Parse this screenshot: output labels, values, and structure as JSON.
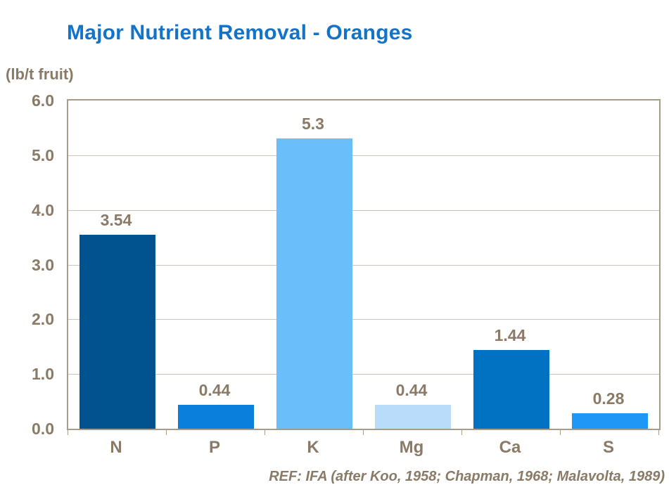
{
  "title": {
    "text": "Major Nutrient Removal - Oranges",
    "color": "#1273C8"
  },
  "unit_label": "(lb/t fruit)",
  "footer": {
    "ref_text": "REF: IFA (after Koo, 1958; Chapman, 1968; Malavolta, 1989)"
  },
  "style_colors": {
    "label_text": "#8A7A66",
    "axis_border": "#A79B89",
    "gridline": "#CCC2B2",
    "background": "#FFFFFF"
  },
  "chart_data": {
    "type": "bar",
    "title": "Major Nutrient Removal - Oranges",
    "categories": [
      "N",
      "P",
      "K",
      "Mg",
      "Ca",
      "S"
    ],
    "values": [
      3.54,
      0.44,
      5.3,
      0.44,
      1.44,
      0.28
    ],
    "value_labels": [
      "3.54",
      "0.44",
      "5.3",
      "0.44",
      "1.44",
      "0.28"
    ],
    "bar_colors": [
      "#00538F",
      "#0A80DC",
      "#6ABFFB",
      "#B9DCFA",
      "#0171C1",
      "#1E97F7"
    ],
    "xlabel": "",
    "ylabel": "(lb/t fruit)",
    "ylim": [
      0,
      6
    ],
    "ytick_interval": 1.0,
    "ytick_labels": [
      "0.0",
      "1.0",
      "2.0",
      "3.0",
      "4.0",
      "5.0",
      "6.0"
    ],
    "grid": true,
    "legend": false,
    "annotation": "REF: IFA (after Koo, 1958; Chapman, 1968; Malavolta, 1989)"
  }
}
